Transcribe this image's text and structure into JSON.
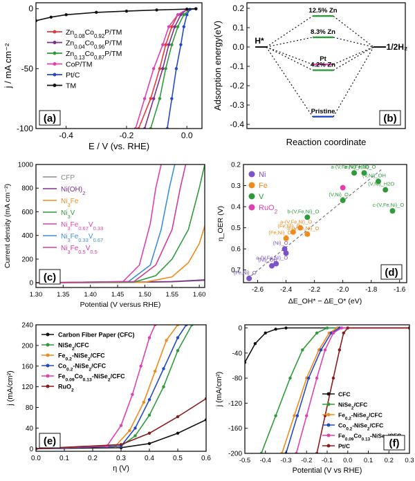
{
  "chart_data": [
    {
      "panel": "(a)",
      "type": "line",
      "xlabel": "E / V (vs. RHE)",
      "ylabel": "j / mA cm⁻²",
      "xlim": [
        -0.5,
        0.05
      ],
      "ylim": [
        -100,
        5
      ],
      "xticks": [
        -0.4,
        -0.2,
        0.0
      ],
      "yticks": [
        0,
        -50,
        -100
      ],
      "legend_position": "left",
      "series": [
        {
          "name": "Zn0.08Co0.92P/TM",
          "color": "#e8373a",
          "x": [
            -0.16,
            -0.12,
            -0.09,
            -0.07,
            -0.05,
            -0.03,
            0.0,
            0.03
          ],
          "y": [
            -100,
            -75,
            -50,
            -30,
            -15,
            -5,
            -0.5,
            0
          ]
        },
        {
          "name": "Zn0.04Co0.96P/TM",
          "color": "#7b2f8f",
          "x": [
            -0.14,
            -0.11,
            -0.08,
            -0.06,
            -0.04,
            -0.02,
            0.0,
            0.03
          ],
          "y": [
            -100,
            -75,
            -50,
            -30,
            -15,
            -5,
            -0.5,
            0
          ]
        },
        {
          "name": "Zn0.13Co0.87P/TM",
          "color": "#2e9b3a",
          "x": [
            -0.12,
            -0.09,
            -0.07,
            -0.05,
            -0.03,
            -0.01,
            0.01,
            0.03
          ],
          "y": [
            -100,
            -75,
            -50,
            -30,
            -15,
            -5,
            -0.5,
            0
          ]
        },
        {
          "name": "CoP/TM",
          "color": "#e03fb0",
          "x": [
            -0.17,
            -0.14,
            -0.11,
            -0.08,
            -0.06,
            -0.03,
            0.0,
            0.03
          ],
          "y": [
            -100,
            -75,
            -50,
            -30,
            -15,
            -5,
            -0.5,
            0
          ]
        },
        {
          "name": "Pt/C",
          "color": "#2448c8",
          "x": [
            -0.065,
            -0.05,
            -0.035,
            -0.02,
            -0.01,
            0.0,
            0.01,
            0.03
          ],
          "y": [
            -100,
            -75,
            -50,
            -30,
            -15,
            -5,
            -0.5,
            0
          ]
        },
        {
          "name": "TM",
          "color": "#111111",
          "x": [
            -0.5,
            -0.45,
            -0.4,
            -0.3,
            -0.2,
            -0.1,
            0.0,
            0.03
          ],
          "y": [
            -10,
            -7,
            -5,
            -3,
            -2,
            -1,
            -0.3,
            0
          ]
        }
      ],
      "labels": {
        "panel_label": "(a)",
        "xaxis_title": "E / V (vs. RHE)",
        "yaxis_title": "j / mA cm⁻²",
        "legend": [
          "Zn0.08Co0.92P/TM",
          "Zn0.04Co0.96P/TM",
          "Zn0.13Co0.87P/TM",
          "CoP/TM",
          "Pt/C",
          "TM"
        ]
      }
    },
    {
      "panel": "(b)",
      "type": "energy_diagram",
      "xlabel": "Reaction coordinate",
      "ylabel": "Adsorption energy(eV)",
      "ylim": [
        -0.4,
        0.2
      ],
      "yticks": [
        0.2,
        0.1,
        0.0,
        -0.1,
        -0.2,
        -0.3,
        -0.4
      ],
      "levels": [
        {
          "name": "12.5% Zn",
          "value": 0.16,
          "color": "#2e9b3a"
        },
        {
          "name": "8.3% Zn",
          "value": 0.05,
          "color": "#2e9b3a"
        },
        {
          "name": "Pt",
          "value": -0.09,
          "color": "#e03fb0"
        },
        {
          "name": "4.2% Zn",
          "value": -0.12,
          "color": "#2e9b3a"
        },
        {
          "name": "Pristine",
          "value": -0.36,
          "color": "#2448c8"
        }
      ],
      "start_label": "H*",
      "end_label": "1/2H₂",
      "labels": {
        "panel_label": "(b)",
        "xaxis_title": "Reaction coordinate",
        "yaxis_title": "Adsorption energy(eV)"
      }
    },
    {
      "panel": "(c)",
      "type": "line",
      "xlabel": "Potential (V versus RHE)",
      "ylabel": "Current density (mA cm⁻²)",
      "xlim": [
        1.3,
        1.61
      ],
      "ylim": [
        -40,
        1000
      ],
      "xticks": [
        1.3,
        1.35,
        1.4,
        1.45,
        1.5,
        1.55,
        1.6
      ],
      "yticks": [
        0,
        200,
        400,
        600,
        800,
        1000
      ],
      "legend_position": "top-left",
      "series": [
        {
          "name": "CFP",
          "color": "#888888",
          "x": [
            1.3,
            1.45,
            1.55,
            1.61
          ],
          "y": [
            0,
            2,
            8,
            20
          ]
        },
        {
          "name": "Ni(OH)2",
          "color": "#7b2f8f",
          "x": [
            1.3,
            1.45,
            1.55,
            1.61
          ],
          "y": [
            0,
            3,
            10,
            25
          ]
        },
        {
          "name": "Ni3Fe",
          "color": "#f08a1a",
          "x": [
            1.3,
            1.5,
            1.55,
            1.58,
            1.6,
            1.61
          ],
          "y": [
            0,
            5,
            50,
            170,
            330,
            480
          ]
        },
        {
          "name": "Ni3V",
          "color": "#2e9b3a",
          "x": [
            1.3,
            1.48,
            1.52,
            1.55,
            1.58,
            1.6,
            1.61
          ],
          "y": [
            0,
            5,
            60,
            200,
            450,
            800,
            1000
          ]
        },
        {
          "name": "Ni3Fe0.67V0.33",
          "color": "#e03fb0",
          "x": [
            1.3,
            1.46,
            1.49,
            1.51,
            1.52,
            1.53
          ],
          "y": [
            0,
            10,
            150,
            500,
            800,
            1000
          ]
        },
        {
          "name": "Ni3Fe0.33V0.67",
          "color": "#3b8fd6",
          "x": [
            1.3,
            1.47,
            1.51,
            1.53,
            1.545,
            1.555
          ],
          "y": [
            0,
            10,
            150,
            450,
            800,
            1000
          ]
        },
        {
          "name": "Ni3Fe0.5V0.5",
          "color": "#d6389a",
          "x": [
            1.3,
            1.48,
            1.52,
            1.55,
            1.565,
            1.575
          ],
          "y": [
            0,
            10,
            150,
            450,
            800,
            1000
          ]
        }
      ],
      "labels": {
        "panel_label": "(c)",
        "xaxis_title": "Potential (V versus RHE)",
        "yaxis_title": "Current density (mA cm⁻²)",
        "legend": [
          "CFP",
          "Ni(OH)2",
          "Ni3Fe",
          "Ni3V",
          "Ni3Fe0.67V0.33",
          "Ni3Fe0.33V0.67",
          "Ni3Fe0.5V0.5"
        ]
      }
    },
    {
      "panel": "(d)",
      "type": "scatter",
      "xlabel": "ΔE_OH* − ΔE_O* (eV)",
      "ylabel": "η_OER (V)",
      "xlim": [
        -2.7,
        -1.55
      ],
      "ylim": [
        0.76,
        0.2
      ],
      "xticks": [
        -2.6,
        -2.4,
        -2.2,
        -2.0,
        -1.8,
        -1.6
      ],
      "yticks": [
        0.2,
        0.3,
        0.4,
        0.5,
        0.6,
        0.7
      ],
      "legend_position": "top-left",
      "trendline": {
        "x": [
          -2.67,
          -1.72
        ],
        "y": [
          0.74,
          0.22
        ]
      },
      "series": [
        {
          "name": "Ni",
          "color": "#7b52c7",
          "points": [
            {
              "x": -2.66,
              "y": 0.74,
              "label": "(Fe,Ni)_O"
            },
            {
              "x": -2.5,
              "y": 0.68,
              "label": "(Ni)_OH"
            },
            {
              "x": -2.47,
              "y": 0.67,
              "label": "a-(V,Fe,Ni)_O"
            },
            {
              "x": -2.41,
              "y": 0.6,
              "label": "(Ni)_O"
            },
            {
              "x": -2.4,
              "y": 0.62,
              "label": ""
            }
          ]
        },
        {
          "name": "Fe",
          "color": "#f08a1a",
          "points": [
            {
              "x": -2.4,
              "y": 0.55,
              "label": "(Fe,Ni)_OH"
            },
            {
              "x": -2.35,
              "y": 0.52,
              "label": "(Fe,Ni)_O"
            },
            {
              "x": -2.3,
              "y": 0.5,
              "label": "a-(V,Fe,Ni)_O"
            },
            {
              "x": -2.25,
              "y": 0.53,
              "label": "b-(V,Fe,Ni)_O"
            }
          ]
        },
        {
          "name": "V",
          "color": "#2e9b3a",
          "points": [
            {
              "x": -2.25,
              "y": 0.45,
              "label": "b-(V,Fe,Ni)_O"
            },
            {
              "x": -2.0,
              "y": 0.37,
              "label": "(V,Ni)_O"
            },
            {
              "x": -1.92,
              "y": 0.24,
              "label": "a-(V,Fe,Ni)_H2O"
            },
            {
              "x": -1.85,
              "y": 0.24,
              "label": "a-(V,Fe,Ni)_O"
            },
            {
              "x": -1.75,
              "y": 0.28,
              "label": "(V,Ni)_OH"
            },
            {
              "x": -1.7,
              "y": 0.32,
              "label": "(V,Ni)_H2O"
            },
            {
              "x": -1.65,
              "y": 0.42,
              "label": "c-(V,Fe,Ni)_O"
            }
          ]
        },
        {
          "name": "RuO2",
          "color": "#e03fb0",
          "points": [
            {
              "x": -2.0,
              "y": 0.31,
              "label": ""
            }
          ]
        }
      ],
      "labels": {
        "panel_label": "(d)",
        "xaxis_title": "ΔE_OH* − ΔE_O* (eV)",
        "yaxis_title": "η_OER (V)",
        "legend": [
          "Ni",
          "Fe",
          "V",
          "RuO2"
        ]
      }
    },
    {
      "panel": "(e)",
      "type": "line",
      "xlabel": "η (V)",
      "ylabel": "j (mA/cm²)",
      "xlim": [
        0.0,
        0.6
      ],
      "ylim": [
        -5,
        240
      ],
      "xticks": [
        0.0,
        0.1,
        0.2,
        0.3,
        0.4,
        0.5,
        0.6
      ],
      "yticks": [
        0,
        40,
        80,
        120,
        160,
        200,
        240
      ],
      "legend_position": "top-left",
      "series": [
        {
          "name": "Carbon Fiber Paper (CFC)",
          "color": "#111111",
          "x": [
            0,
            0.3,
            0.4,
            0.5,
            0.6
          ],
          "y": [
            0,
            2,
            10,
            30,
            56
          ]
        },
        {
          "name": "NiSe2/CFC",
          "color": "#2e9b3a",
          "x": [
            0,
            0.3,
            0.35,
            0.4,
            0.45,
            0.5,
            0.55
          ],
          "y": [
            0,
            5,
            25,
            65,
            120,
            190,
            240
          ]
        },
        {
          "name": "Fe0.2-NiSe2/CFC",
          "color": "#f08a1a",
          "x": [
            0,
            0.28,
            0.33,
            0.38,
            0.42,
            0.46,
            0.5
          ],
          "y": [
            0,
            5,
            35,
            90,
            150,
            210,
            240
          ]
        },
        {
          "name": "Co0.2-NiSe2/CFC",
          "color": "#2448c8",
          "x": [
            0,
            0.3,
            0.35,
            0.4,
            0.45,
            0.5,
            0.53
          ],
          "y": [
            0,
            5,
            40,
            95,
            155,
            215,
            240
          ]
        },
        {
          "name": "Fe0.09Co0.13-NiSe2/CFC",
          "color": "#e03fb0",
          "x": [
            0,
            0.25,
            0.3,
            0.34,
            0.37,
            0.4,
            0.42
          ],
          "y": [
            0,
            5,
            45,
            105,
            160,
            215,
            240
          ]
        },
        {
          "name": "RuO2",
          "color": "#8b1a1a",
          "x": [
            0,
            0.3,
            0.4,
            0.5,
            0.6
          ],
          "y": [
            0,
            8,
            30,
            62,
            97
          ]
        }
      ],
      "labels": {
        "panel_label": "(e)",
        "xaxis_title": "η (V)",
        "yaxis_title": "j (mA/cm²)",
        "legend": [
          "Carbon Fiber Paper (CFC)",
          "NiSe2/CFC",
          "Fe0.2-NiSe2/CFC",
          "Co0.2-NiSe2/CFC",
          "Fe0.09Co0.13-NiSe2/CFC",
          "RuO2"
        ]
      }
    },
    {
      "panel": "(f)",
      "type": "line",
      "xlabel": "Potential (V vs RHE)",
      "ylabel": "j (mA/cm²)",
      "xlim": [
        -0.5,
        0.3
      ],
      "ylim": [
        -200,
        5
      ],
      "xticks": [
        -0.5,
        -0.4,
        -0.3,
        -0.2,
        -0.1,
        0.0,
        0.1,
        0.2,
        0.3
      ],
      "yticks": [
        0,
        -40,
        -80,
        -120,
        -160,
        -200
      ],
      "legend_position": "bottom-right",
      "series": [
        {
          "name": "CFC",
          "color": "#111111",
          "x": [
            -0.5,
            -0.45,
            -0.4,
            -0.35,
            -0.3,
            0.3
          ],
          "y": [
            -55,
            -25,
            -8,
            -2,
            0,
            0
          ]
        },
        {
          "name": "NiSe2/CFC",
          "color": "#2e9b3a",
          "x": [
            -0.42,
            -0.35,
            -0.28,
            -0.22,
            -0.15,
            -0.1,
            0.3
          ],
          "y": [
            -200,
            -140,
            -80,
            -35,
            -8,
            0,
            0
          ]
        },
        {
          "name": "Fe0.2-NiSe2/CFC",
          "color": "#f08a1a",
          "x": [
            -0.32,
            -0.26,
            -0.2,
            -0.14,
            -0.09,
            -0.05,
            0.3
          ],
          "y": [
            -200,
            -140,
            -80,
            -35,
            -8,
            0,
            0
          ]
        },
        {
          "name": "Co0.2-NiSe2/CFC",
          "color": "#2448c8",
          "x": [
            -0.3,
            -0.245,
            -0.19,
            -0.13,
            -0.08,
            -0.04,
            0.3
          ],
          "y": [
            -200,
            -140,
            -80,
            -35,
            -8,
            0,
            0
          ]
        },
        {
          "name": "Fe0.09Co0.13-NiSe2/CFC",
          "color": "#e03fb0",
          "x": [
            -0.25,
            -0.2,
            -0.15,
            -0.11,
            -0.07,
            -0.03,
            0.3
          ],
          "y": [
            -200,
            -140,
            -80,
            -35,
            -8,
            0,
            0
          ]
        },
        {
          "name": "Pt/C",
          "color": "#8b1a1a",
          "x": [
            -0.15,
            -0.11,
            -0.07,
            -0.04,
            -0.02,
            0.0,
            0.3
          ],
          "y": [
            -200,
            -140,
            -80,
            -35,
            -8,
            0,
            0
          ]
        }
      ],
      "labels": {
        "panel_label": "(f)",
        "xaxis_title": "Potential (V vs RHE)",
        "yaxis_title": "j (mA/cm²)",
        "legend": [
          "CFC",
          "NiSe2/CFC",
          "Fe0.2-NiSe2/CFC",
          "Co0.2-NiSe2/CFC",
          "Fe0.09Co0.13-NiSe2/CFC",
          "Pt/C"
        ]
      }
    }
  ]
}
